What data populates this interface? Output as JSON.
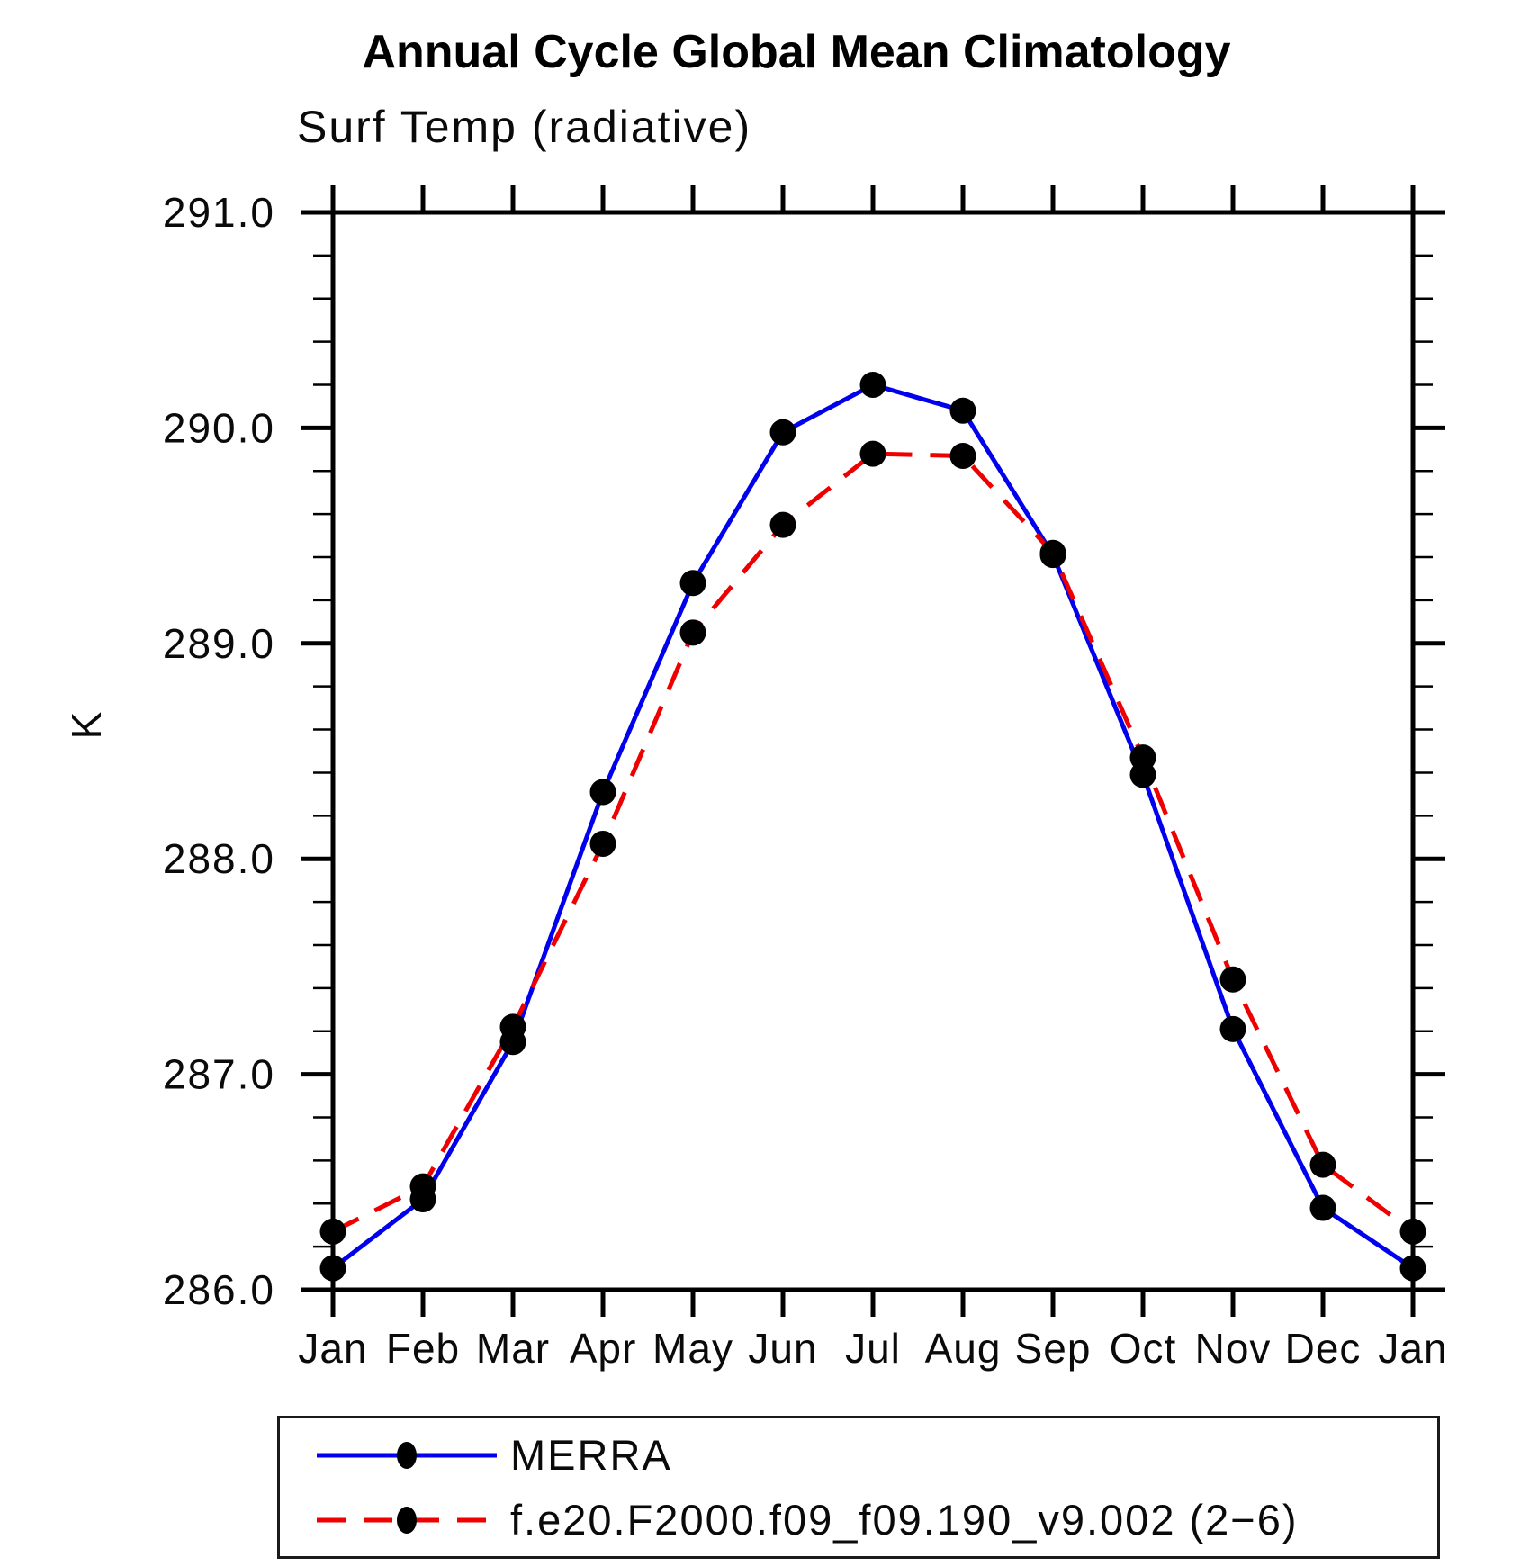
{
  "chart_data": {
    "type": "line",
    "title": "Annual Cycle Global Mean Climatology",
    "subtitle": "Surf Temp (radiative)",
    "ylabel": "K",
    "ylim": [
      286.0,
      291.0
    ],
    "y_major_step": 1.0,
    "y_minor_step": 0.2,
    "y_tick_labels": [
      "286.0",
      "287.0",
      "288.0",
      "289.0",
      "290.0",
      "291.0"
    ],
    "grid": false,
    "legend_position": "bottom",
    "categories": [
      "Jan",
      "Feb",
      "Mar",
      "Apr",
      "May",
      "Jun",
      "Jul",
      "Aug",
      "Sep",
      "Oct",
      "Nov",
      "Dec",
      "Jan"
    ],
    "series": [
      {
        "name": "MERRA",
        "color": "#0000ee",
        "style": "solid",
        "marker_color": "#000000",
        "values": [
          286.1,
          286.42,
          287.15,
          288.31,
          289.28,
          289.98,
          290.2,
          290.08,
          289.41,
          288.39,
          287.21,
          286.38,
          286.1
        ]
      },
      {
        "name": "f.e20.F2000.f09_f09.190_v9.002 (2−6)",
        "color": "#ee0000",
        "style": "dashed",
        "marker_color": "#000000",
        "values": [
          286.27,
          286.48,
          287.22,
          288.07,
          289.05,
          289.55,
          289.88,
          289.87,
          289.42,
          288.47,
          287.44,
          286.58,
          286.27
        ]
      }
    ],
    "axis_color": "#000000",
    "background_color": "#ffffff"
  }
}
